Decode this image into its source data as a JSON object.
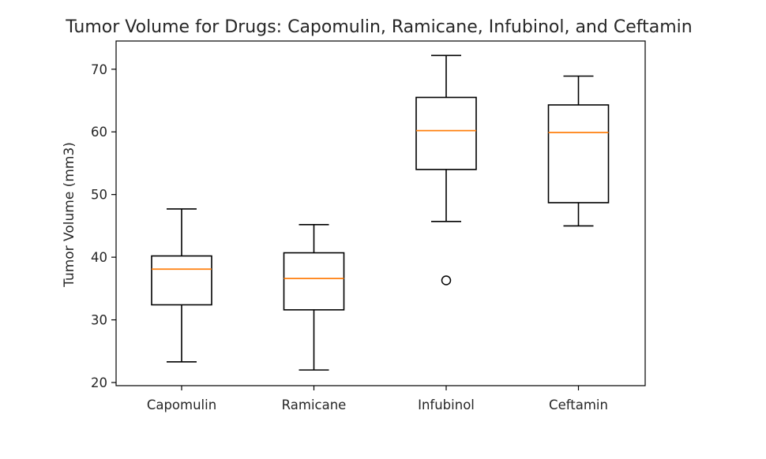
{
  "chart_data": {
    "type": "box",
    "title": "Tumor Volume for Drugs: Capomulin, Ramicane, Infubinol, and Ceftamin",
    "xlabel": "",
    "ylabel": "Tumor Volume (mm3)",
    "ylim": [
      19.5,
      74.5
    ],
    "yticks": [
      20,
      30,
      40,
      50,
      60,
      70
    ],
    "grid": false,
    "categories": [
      "Capomulin",
      "Ramicane",
      "Infubinol",
      "Ceftamin"
    ],
    "boxes": [
      {
        "category": "Capomulin",
        "whisker_low": 23.3,
        "q1": 32.4,
        "median": 38.1,
        "q3": 40.2,
        "whisker_high": 47.7,
        "outliers": []
      },
      {
        "category": "Ramicane",
        "whisker_low": 22.0,
        "q1": 31.6,
        "median": 36.6,
        "q3": 40.7,
        "whisker_high": 45.2,
        "outliers": []
      },
      {
        "category": "Infubinol",
        "whisker_low": 45.7,
        "q1": 54.0,
        "median": 60.2,
        "q3": 65.5,
        "whisker_high": 72.2,
        "outliers": [
          36.3
        ]
      },
      {
        "category": "Ceftamin",
        "whisker_low": 45.0,
        "q1": 48.7,
        "median": 59.9,
        "q3": 64.3,
        "whisker_high": 68.9,
        "outliers": []
      }
    ],
    "colors": {
      "box": "#000000",
      "median": "#ff7f0e",
      "text": "#262626"
    }
  }
}
